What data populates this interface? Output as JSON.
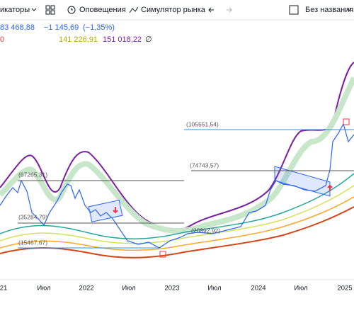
{
  "toolbar": {
    "indicators": "икаторы",
    "alerts": "Оповещения",
    "replay": "Симулятор рынка",
    "layout_name": "Без названия"
  },
  "legend": {
    "price": "83 468,88",
    "change": "−1 145,69",
    "change_pct": "(−1,35%)",
    "ma_first": "0",
    "ma_olive": "141 226,91",
    "ma_purple": "151 018,22",
    "ma_empty": "∅"
  },
  "levels": [
    "(105551,54)",
    "(74743,57)",
    "(67265,31)",
    "(35284,79)",
    "(15467,67)",
    "(20892,92)"
  ],
  "x_axis": [
    "21",
    "Июл",
    "2022",
    "Июл",
    "2023",
    "Июл",
    "2024",
    "Июл",
    "2025"
  ]
}
